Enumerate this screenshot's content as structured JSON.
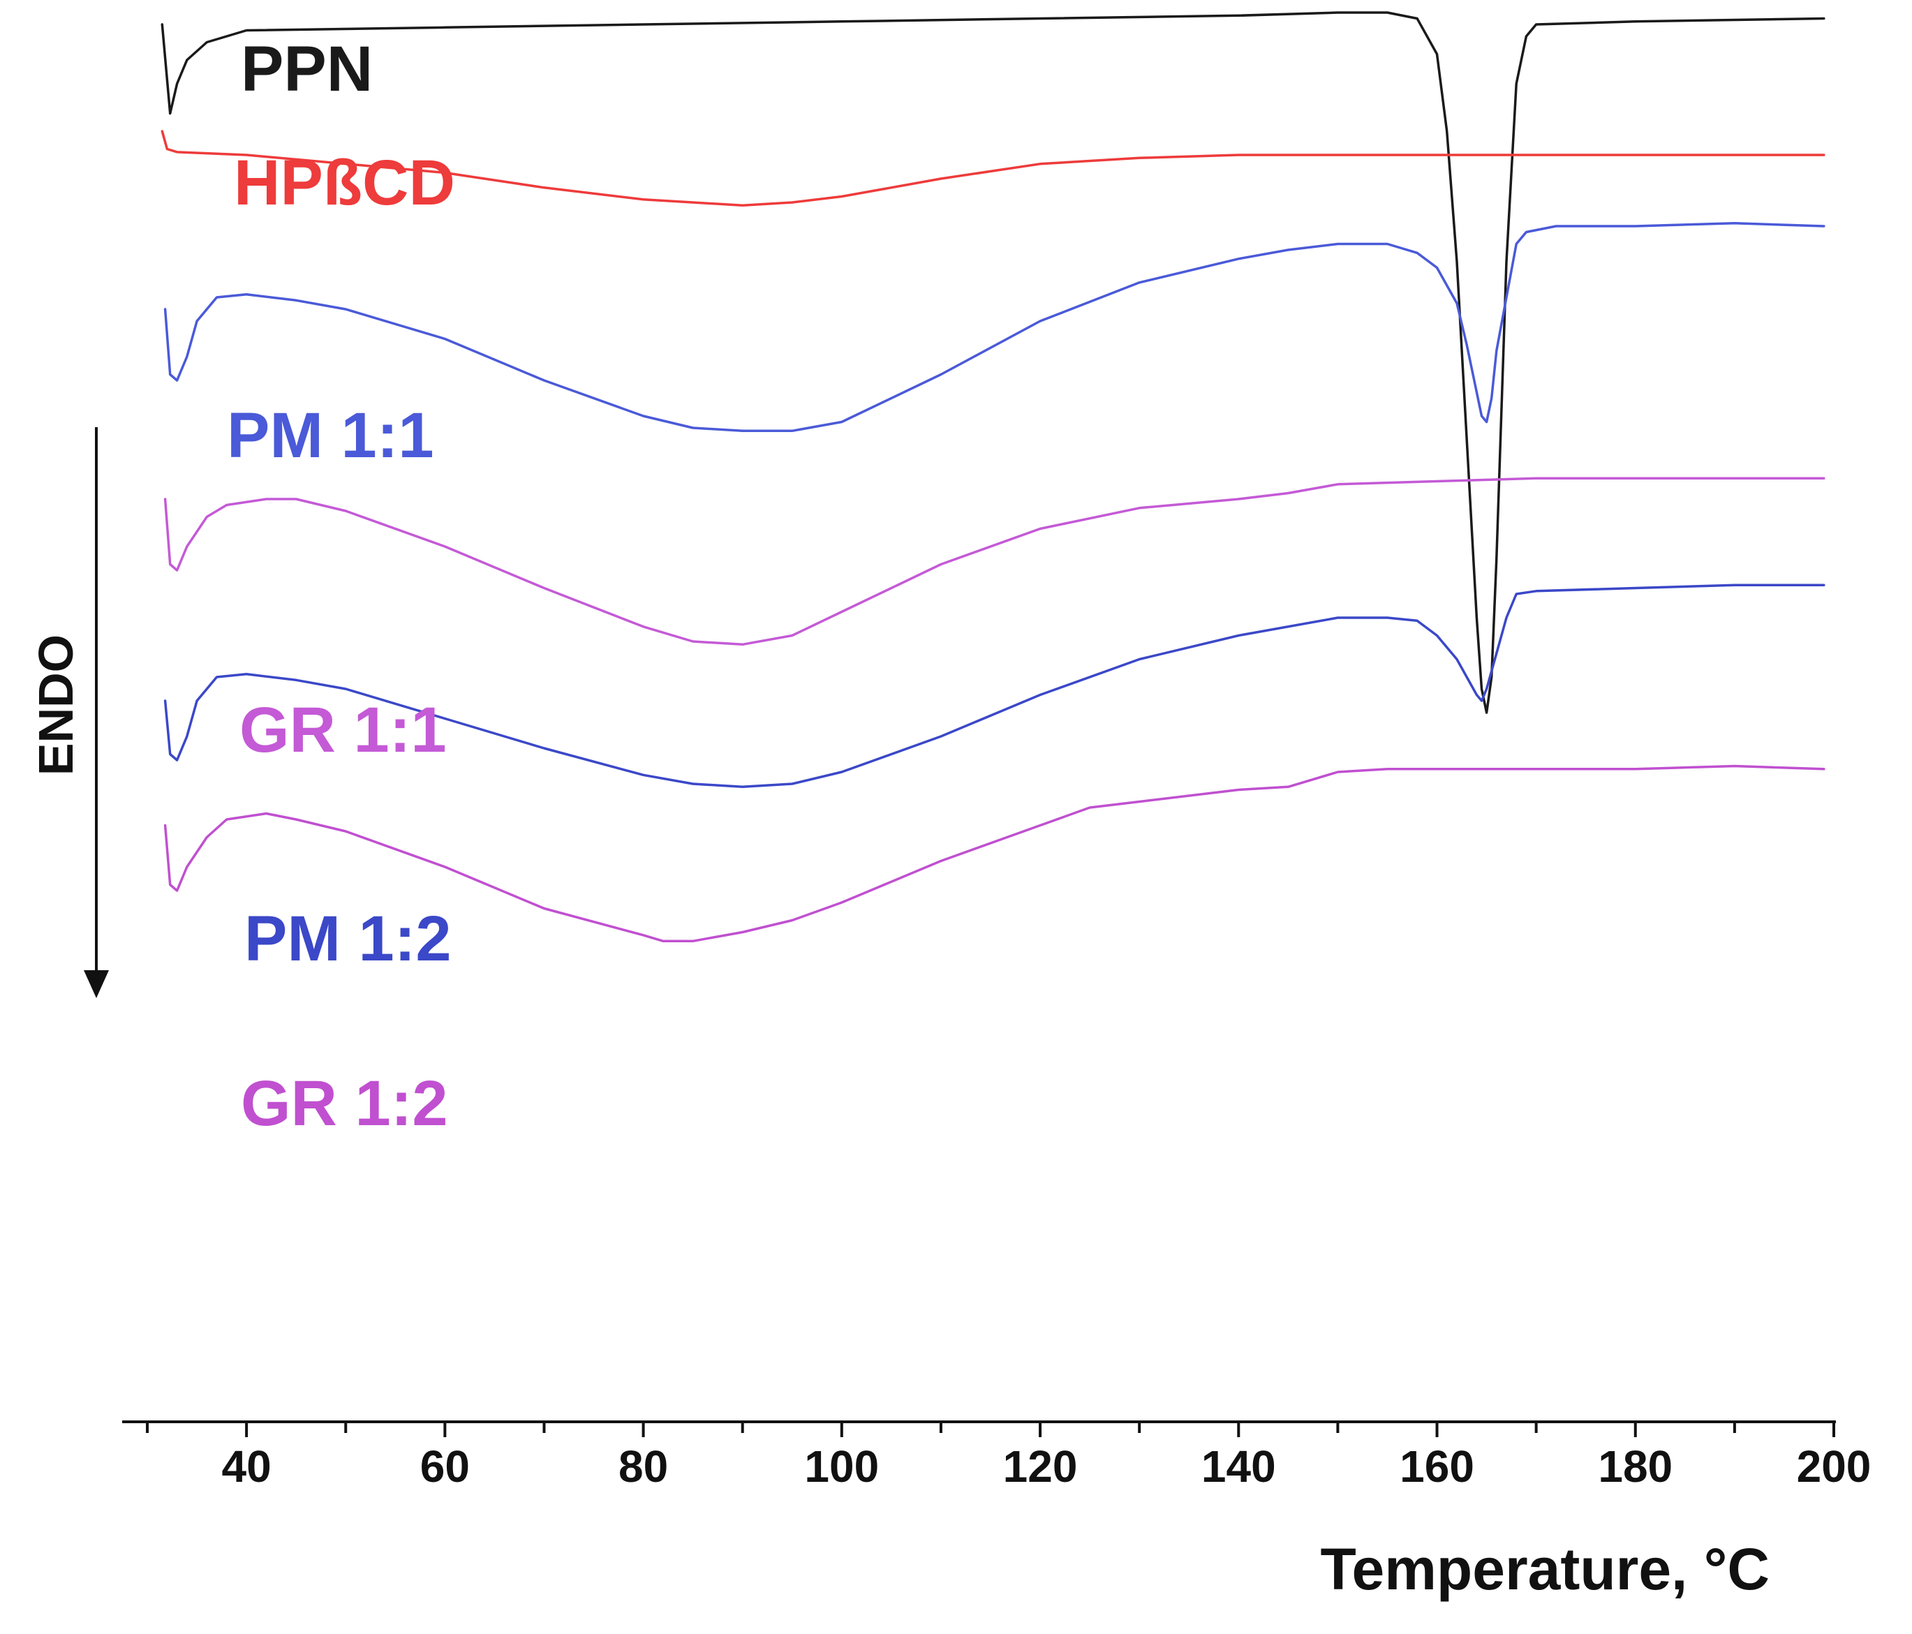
{
  "chart_data": {
    "type": "line",
    "title": "",
    "xlabel": "Temperature, °C",
    "ylabel": "",
    "xlim": [
      30,
      200
    ],
    "x_ticks_major": [
      40,
      60,
      80,
      100,
      120,
      140,
      160,
      180,
      200
    ],
    "x_ticks_minor_step": 10,
    "y_axis_visible": false,
    "direction_label": "ENDO",
    "y_units_note": "heat flow offset per curve (arbitrary units, higher = upper on page)",
    "series": [
      {
        "name": "PPN",
        "label": "PPN",
        "color": "#1a1a1a",
        "points": [
          [
            31.5,
            90
          ],
          [
            32.3,
            75
          ],
          [
            33,
            80
          ],
          [
            34,
            84
          ],
          [
            36,
            87
          ],
          [
            40,
            89
          ],
          [
            60,
            89.5
          ],
          [
            80,
            90
          ],
          [
            100,
            90.5
          ],
          [
            120,
            91
          ],
          [
            140,
            91.5
          ],
          [
            150,
            92
          ],
          [
            155,
            92
          ],
          [
            158,
            91
          ],
          [
            160,
            85
          ],
          [
            161,
            72
          ],
          [
            162,
            50
          ],
          [
            163,
            20
          ],
          [
            164,
            -10
          ],
          [
            164.5,
            -22
          ],
          [
            165,
            -26
          ],
          [
            165.5,
            -20
          ],
          [
            166,
            0
          ],
          [
            167,
            50
          ],
          [
            168,
            80
          ],
          [
            169,
            88
          ],
          [
            170,
            90
          ],
          [
            180,
            90.5
          ],
          [
            199,
            91
          ]
        ]
      },
      {
        "name": "HPßCD",
        "label": "HPßCD",
        "color": "#ee3b3b",
        "points": [
          [
            31.5,
            72
          ],
          [
            32,
            69
          ],
          [
            33,
            68.5
          ],
          [
            40,
            68
          ],
          [
            60,
            65
          ],
          [
            70,
            62.5
          ],
          [
            80,
            60.5
          ],
          [
            85,
            60
          ],
          [
            90,
            59.5
          ],
          [
            95,
            60
          ],
          [
            100,
            61
          ],
          [
            110,
            64
          ],
          [
            120,
            66.5
          ],
          [
            130,
            67.5
          ],
          [
            140,
            68
          ],
          [
            160,
            68
          ],
          [
            199,
            68
          ]
        ]
      },
      {
        "name": "PM 1:1",
        "label": "PM 1:1",
        "color": "#4a5ad8",
        "points": [
          [
            31.8,
            42
          ],
          [
            32.3,
            31
          ],
          [
            33,
            30
          ],
          [
            34,
            34
          ],
          [
            35,
            40
          ],
          [
            37,
            44
          ],
          [
            40,
            44.5
          ],
          [
            45,
            43.5
          ],
          [
            50,
            42
          ],
          [
            60,
            37
          ],
          [
            70,
            30
          ],
          [
            80,
            24
          ],
          [
            85,
            22
          ],
          [
            90,
            21.5
          ],
          [
            95,
            21.5
          ],
          [
            100,
            23
          ],
          [
            110,
            31
          ],
          [
            120,
            40
          ],
          [
            130,
            46.5
          ],
          [
            140,
            50.5
          ],
          [
            145,
            52
          ],
          [
            150,
            53
          ],
          [
            155,
            53
          ],
          [
            158,
            51.5
          ],
          [
            160,
            49
          ],
          [
            162,
            43
          ],
          [
            163,
            36
          ],
          [
            164,
            28
          ],
          [
            164.5,
            24
          ],
          [
            165,
            23
          ],
          [
            165.5,
            27
          ],
          [
            166,
            35
          ],
          [
            167,
            44
          ],
          [
            168,
            53
          ],
          [
            169,
            55
          ],
          [
            172,
            56
          ],
          [
            180,
            56
          ],
          [
            190,
            56.5
          ],
          [
            199,
            56
          ]
        ]
      },
      {
        "name": "GR 1:1",
        "label": "GR 1:1",
        "color": "#c45ad6",
        "points": [
          [
            31.8,
            10
          ],
          [
            32.3,
            -1
          ],
          [
            33,
            -2
          ],
          [
            34,
            2
          ],
          [
            36,
            7
          ],
          [
            38,
            9
          ],
          [
            42,
            10
          ],
          [
            45,
            10
          ],
          [
            50,
            8
          ],
          [
            60,
            2
          ],
          [
            70,
            -5
          ],
          [
            80,
            -11.5
          ],
          [
            85,
            -14
          ],
          [
            90,
            -14.5
          ],
          [
            95,
            -13
          ],
          [
            100,
            -9
          ],
          [
            110,
            -1
          ],
          [
            120,
            5
          ],
          [
            130,
            8.5
          ],
          [
            140,
            10
          ],
          [
            145,
            11
          ],
          [
            150,
            12.5
          ],
          [
            160,
            13
          ],
          [
            170,
            13.5
          ],
          [
            180,
            13.5
          ],
          [
            199,
            13.5
          ]
        ]
      },
      {
        "name": "PM 1:2",
        "label": "PM 1:2",
        "color": "#3b48c8",
        "points": [
          [
            31.8,
            -24
          ],
          [
            32.3,
            -33
          ],
          [
            33,
            -34
          ],
          [
            34,
            -30
          ],
          [
            35,
            -24
          ],
          [
            37,
            -20
          ],
          [
            40,
            -19.5
          ],
          [
            45,
            -20.5
          ],
          [
            50,
            -22
          ],
          [
            60,
            -27
          ],
          [
            70,
            -32
          ],
          [
            80,
            -36.5
          ],
          [
            85,
            -38
          ],
          [
            90,
            -38.5
          ],
          [
            95,
            -38
          ],
          [
            100,
            -36
          ],
          [
            110,
            -30
          ],
          [
            120,
            -23
          ],
          [
            130,
            -17
          ],
          [
            140,
            -13
          ],
          [
            150,
            -10
          ],
          [
            155,
            -10
          ],
          [
            158,
            -10.5
          ],
          [
            160,
            -13
          ],
          [
            162,
            -17
          ],
          [
            163,
            -20
          ],
          [
            164,
            -23
          ],
          [
            164.5,
            -24
          ],
          [
            165,
            -22
          ],
          [
            166,
            -16
          ],
          [
            167,
            -10
          ],
          [
            168,
            -6
          ],
          [
            170,
            -5.5
          ],
          [
            180,
            -5
          ],
          [
            190,
            -4.5
          ],
          [
            199,
            -4.5
          ]
        ]
      },
      {
        "name": "GR 1:2",
        "label": "GR 1:2",
        "color": "#c050d0",
        "points": [
          [
            31.8,
            -45
          ],
          [
            32.3,
            -55
          ],
          [
            33,
            -56
          ],
          [
            34,
            -52
          ],
          [
            36,
            -47
          ],
          [
            38,
            -44
          ],
          [
            42,
            -43
          ],
          [
            45,
            -44
          ],
          [
            50,
            -46
          ],
          [
            60,
            -52
          ],
          [
            70,
            -59
          ],
          [
            80,
            -63.5
          ],
          [
            82,
            -64.5
          ],
          [
            85,
            -64.5
          ],
          [
            90,
            -63
          ],
          [
            95,
            -61
          ],
          [
            100,
            -58
          ],
          [
            110,
            -51
          ],
          [
            120,
            -45
          ],
          [
            125,
            -42
          ],
          [
            130,
            -41
          ],
          [
            140,
            -39
          ],
          [
            145,
            -38.5
          ],
          [
            150,
            -36
          ],
          [
            155,
            -35.5
          ],
          [
            160,
            -35.5
          ],
          [
            170,
            -35.5
          ],
          [
            180,
            -35.5
          ],
          [
            190,
            -35
          ],
          [
            199,
            -35.5
          ]
        ]
      }
    ]
  }
}
